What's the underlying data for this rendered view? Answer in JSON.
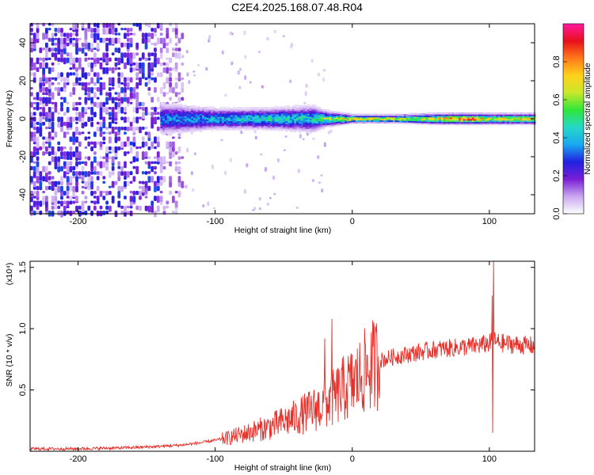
{
  "title": "C2E4.2025.168.07.48.R04",
  "chart_data": [
    {
      "type": "heatmap",
      "panel": "spectrogram",
      "xlabel": "Height of straight line (km)",
      "ylabel": "Frequency (Hz)",
      "xlim": [
        -235,
        133
      ],
      "ylim": [
        -50,
        50
      ],
      "xticks": [
        -200,
        -100,
        0,
        100
      ],
      "xtick_labels": [
        "-200",
        "-100",
        "0",
        "100"
      ],
      "yticks": [
        -40,
        -20,
        0,
        20,
        40
      ],
      "ytick_labels": [
        "-40",
        "-20",
        "0",
        "20",
        "40"
      ],
      "colorbar": {
        "label": "Normalized spectral amplitude",
        "range": [
          0,
          1
        ],
        "ticks": [
          0.0,
          0.2,
          0.4,
          0.6,
          0.8
        ],
        "tick_labels": [
          "0.0",
          "0.2",
          "0.4",
          "0.6",
          "0.8"
        ],
        "colormap": [
          "#ffffff",
          "#c9a8f0",
          "#7a1fd6",
          "#2020e0",
          "#1aa8f0",
          "#25d8c8",
          "#2ee63a",
          "#c8e82a",
          "#ffd21a",
          "#ff7a1a",
          "#e8101a",
          "#ff1aa0"
        ]
      },
      "noise_region_km": [
        -235,
        -125
      ],
      "band_x_km": [
        -140,
        -100,
        -60,
        -30,
        -20,
        0,
        30,
        60,
        85,
        100,
        133
      ],
      "band_halfwidth_hz": [
        6,
        4,
        4,
        5,
        3,
        1.5,
        1.5,
        2,
        2,
        2,
        2
      ],
      "band_peak_amplitude": [
        0.35,
        0.42,
        0.48,
        0.45,
        0.6,
        0.75,
        0.7,
        0.72,
        0.95,
        0.7,
        0.75
      ],
      "grid": false
    },
    {
      "type": "line",
      "panel": "snr",
      "xlabel": "Height of straight line (km)",
      "ylabel": "SNR (10 * v/v)",
      "scale_label": "(x10⁴)",
      "xlim": [
        -235,
        133
      ],
      "ylim": [
        0,
        1.55
      ],
      "xticks": [
        -200,
        -100,
        0,
        100
      ],
      "xtick_labels": [
        "-200",
        "-100",
        "0",
        "100"
      ],
      "yticks": [
        0.5,
        1.0,
        1.5
      ],
      "ytick_labels": [
        "0.5",
        "1.0",
        "1.5"
      ],
      "color": "#e8302a",
      "series": [
        {
          "x": [
            -235,
            -200,
            -160,
            -140,
            -125,
            -110,
            -100,
            -90,
            -80,
            -70,
            -60,
            -50,
            -40,
            -30,
            -20,
            -15,
            -10,
            -5,
            0,
            5,
            10,
            15,
            20,
            30,
            40,
            50,
            60,
            70,
            80,
            90,
            95,
            100,
            103,
            105,
            110,
            120,
            133
          ],
          "y": [
            0.02,
            0.02,
            0.03,
            0.04,
            0.05,
            0.07,
            0.09,
            0.11,
            0.14,
            0.17,
            0.2,
            0.24,
            0.28,
            0.33,
            0.38,
            0.42,
            0.47,
            0.52,
            0.55,
            0.6,
            0.66,
            0.7,
            0.74,
            0.77,
            0.79,
            0.81,
            0.83,
            0.84,
            0.85,
            0.86,
            0.87,
            0.88,
            0.9,
            0.89,
            0.88,
            0.87,
            0.86
          ]
        }
      ],
      "spikes": [
        {
          "x": -20,
          "y": 0.92
        },
        {
          "x": -15,
          "y": 1.08
        },
        {
          "x": 102,
          "y": 1.27
        },
        {
          "x": 103,
          "y": 1.55
        },
        {
          "x": 102.5,
          "y": 0.15
        }
      ],
      "grid": false
    }
  ]
}
